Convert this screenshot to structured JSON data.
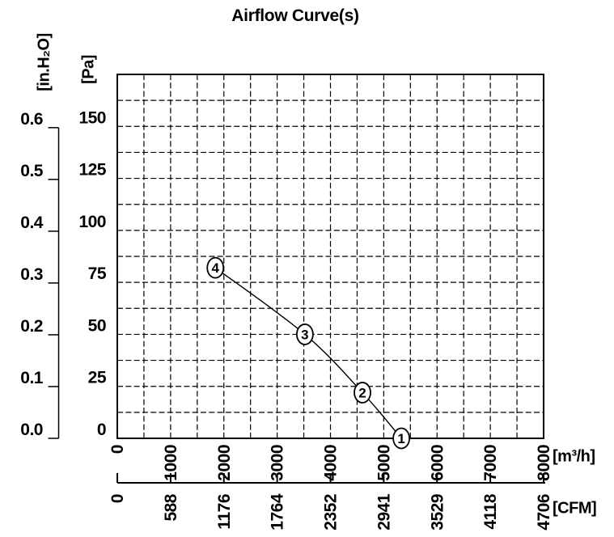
{
  "title": "Airflow Curve(s)",
  "chart_data": {
    "type": "line",
    "title": "Airflow Curve(s)",
    "x_axis_primary": {
      "unit_label": "[m³/h]",
      "min": 0,
      "max": 8000,
      "minor_step": 500,
      "ticks": [
        0,
        1000,
        2000,
        3000,
        4000,
        5000,
        6000,
        7000,
        8000
      ]
    },
    "x_axis_secondary": {
      "unit_label": "[CFM]",
      "ticks": [
        0,
        588,
        1176,
        1764,
        2352,
        2941,
        3529,
        4118,
        4706
      ]
    },
    "y_axis_primary": {
      "unit_label": "[Pa]",
      "min": 0,
      "max_shown": 175,
      "minor_step": 12.5,
      "ticks": [
        150,
        125,
        100,
        75,
        50,
        25,
        0
      ]
    },
    "y_axis_secondary": {
      "unit_label": "[in.H₂O]",
      "ticks": [
        "0.6",
        "0.5",
        "0.4",
        "0.3",
        "0.2",
        "0.1",
        "0.0"
      ]
    },
    "grid": {
      "on": true,
      "style": "dashed"
    },
    "series": [
      {
        "name": "airflow curve",
        "points": [
          {
            "marker": "4",
            "flow_m3h": 1840,
            "pressure_pa": 82
          },
          {
            "marker": "3",
            "flow_m3h": 3520,
            "pressure_pa": 50
          },
          {
            "marker": "2",
            "flow_m3h": 4600,
            "pressure_pa": 22
          },
          {
            "marker": "1",
            "flow_m3h": 5330,
            "pressure_pa": 0
          }
        ]
      }
    ]
  }
}
